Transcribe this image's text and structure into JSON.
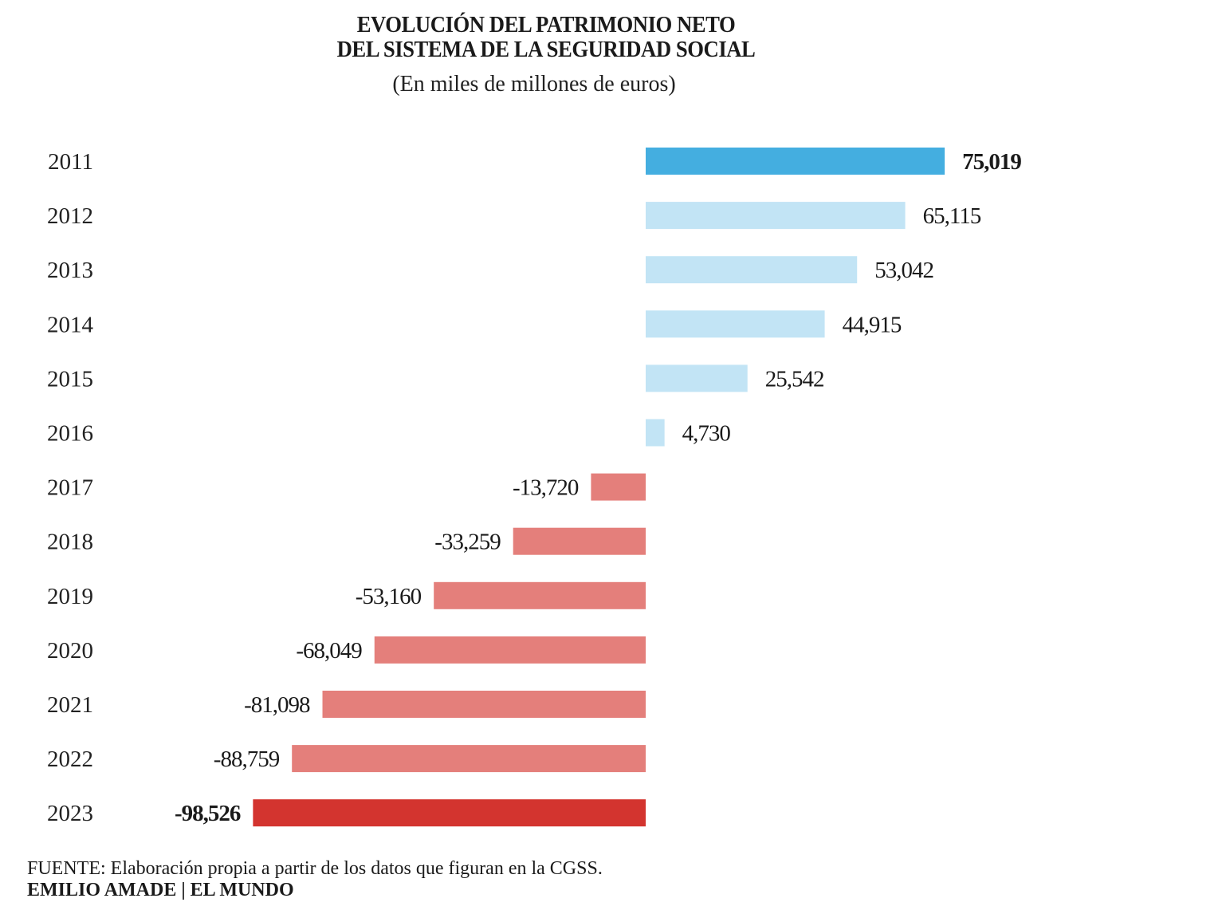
{
  "chart_data": {
    "type": "bar",
    "orientation": "horizontal",
    "title_lines": [
      "EVOLUCIÓN DEL PATRIMONIO NETO",
      "DEL SISTEMA DE LA SEGURIDAD SOCIAL"
    ],
    "subtitle": "(En miles de millones de euros)",
    "xlabel": "",
    "ylabel": "",
    "categories": [
      "2011",
      "2012",
      "2013",
      "2014",
      "2015",
      "2016",
      "2017",
      "2018",
      "2019",
      "2020",
      "2021",
      "2022",
      "2023"
    ],
    "values": [
      75.019,
      65.115,
      53.042,
      44.915,
      25.542,
      4.73,
      -13.72,
      -33.259,
      -53.16,
      -68.049,
      -81.098,
      -88.759,
      -98.526
    ],
    "value_labels": [
      "75,019",
      "65,115",
      "53,042",
      "44,915",
      "25,542",
      "4,730",
      "-13,720",
      "-33,259",
      "-53,160",
      "-68,049",
      "-81,098",
      "-88,759",
      "-98,526"
    ],
    "highlighted": [
      true,
      false,
      false,
      false,
      false,
      false,
      false,
      false,
      false,
      false,
      false,
      false,
      true
    ],
    "xlim": [
      -100,
      80
    ],
    "grid": false,
    "legend": "none",
    "colors": {
      "positive_highlight": "#44aee0",
      "positive": "#c2e4f5",
      "negative": "#e47f7b",
      "negative_highlight": "#d3342f"
    }
  },
  "footer": {
    "source": "FUENTE: Elaboración propia a partir de los datos que figuran en la CGSS.",
    "credit": "EMILIO AMADE | EL MUNDO"
  }
}
